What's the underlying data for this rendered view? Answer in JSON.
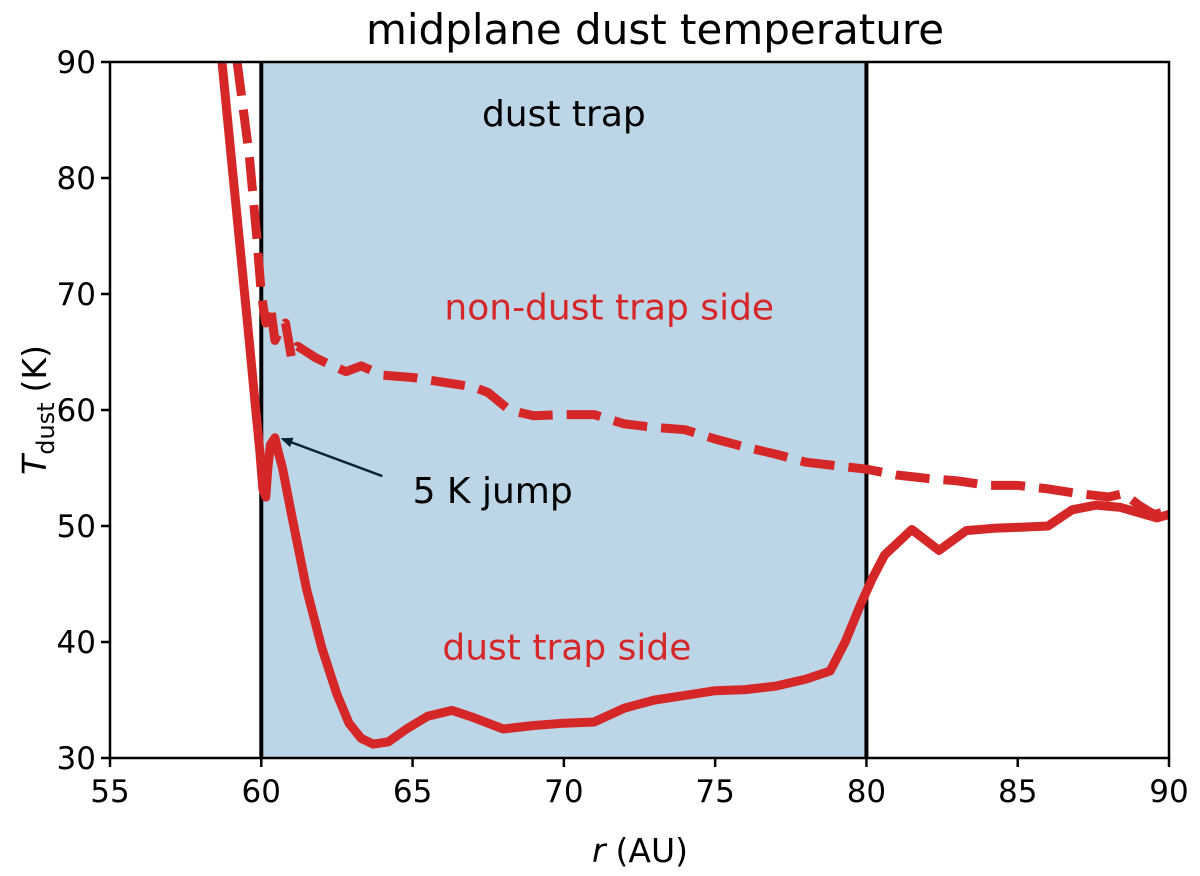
{
  "chart_data": {
    "type": "line",
    "title": "midplane dust temperature",
    "xlabel": "(AU)",
    "xlabel_symbol": "r",
    "ylabel_symbol": "T",
    "ylabel_subscript": "dust",
    "ylabel_unit": "(K)",
    "xlim": [
      55,
      90
    ],
    "ylim": [
      30,
      90
    ],
    "xticks": [
      55,
      60,
      65,
      70,
      75,
      80,
      85,
      90
    ],
    "yticks": [
      30,
      40,
      50,
      60,
      70,
      80,
      90
    ],
    "grid": false,
    "shaded_region": {
      "x": [
        60,
        80
      ],
      "label": "dust trap",
      "color": "#bcd6e8"
    },
    "vlines": [
      60,
      80
    ],
    "series": [
      {
        "name": "non-dust trap side",
        "color": "#d62728",
        "style": "dashed",
        "x": [
          59.2,
          59.6,
          59.85,
          60.0,
          60.15,
          60.3,
          60.45,
          60.6,
          60.8,
          61.0,
          61.2,
          61.5,
          61.8,
          62.2,
          62.8,
          63.3,
          64.0,
          65.0,
          66.0,
          67.0,
          67.5,
          68.2,
          69.0,
          70.0,
          71.0,
          72.0,
          73.0,
          74.0,
          75.0,
          76.0,
          77.0,
          78.0,
          79.0,
          80.0,
          81.0,
          82.0,
          83.0,
          84.0,
          85.0,
          86.0,
          87.0,
          88.0,
          88.5,
          89.0,
          89.5,
          90.0
        ],
        "y": [
          90.0,
          82.0,
          75.0,
          70.0,
          67.5,
          69.0,
          66.0,
          66.8,
          67.5,
          64.5,
          65.5,
          65.0,
          64.5,
          64.0,
          63.3,
          63.8,
          63.0,
          62.8,
          62.4,
          62.0,
          61.5,
          60.0,
          59.5,
          59.6,
          59.6,
          58.8,
          58.5,
          58.3,
          57.5,
          56.8,
          56.2,
          55.5,
          55.2,
          54.9,
          54.4,
          54.1,
          53.9,
          53.5,
          53.5,
          53.2,
          52.8,
          52.5,
          52.8,
          51.8,
          51.0,
          51.3
        ]
      },
      {
        "name": "dust trap side",
        "color": "#d62728",
        "style": "solid",
        "x": [
          58.7,
          59.0,
          59.3,
          59.6,
          59.8,
          59.95,
          60.05,
          60.15,
          60.22,
          60.3,
          60.45,
          60.55,
          60.7,
          61.0,
          61.5,
          62.0,
          62.5,
          62.9,
          63.3,
          63.7,
          64.2,
          64.8,
          65.5,
          66.3,
          67.0,
          68.0,
          69.0,
          70.0,
          71.0,
          72.0,
          73.0,
          74.0,
          75.0,
          76.0,
          77.0,
          78.0,
          78.8,
          79.3,
          79.8,
          80.2,
          80.6,
          81.5,
          82.4,
          83.3,
          84.2,
          85.1,
          86.0,
          86.8,
          87.6,
          88.4,
          89.2,
          89.6,
          90.0
        ],
        "y": [
          90.0,
          82.0,
          74.0,
          66.0,
          60.5,
          56.5,
          53.2,
          52.5,
          55.0,
          57.0,
          57.6,
          56.5,
          55.0,
          51.0,
          44.5,
          39.5,
          35.5,
          33.0,
          31.7,
          31.2,
          31.4,
          32.5,
          33.6,
          34.1,
          33.5,
          32.5,
          32.8,
          33.0,
          33.1,
          34.3,
          35.0,
          35.4,
          35.8,
          35.9,
          36.2,
          36.8,
          37.5,
          40.0,
          43.2,
          45.5,
          47.5,
          49.7,
          47.9,
          49.6,
          49.8,
          49.9,
          50.0,
          51.4,
          51.8,
          51.6,
          51.0,
          50.7,
          51.0
        ]
      }
    ],
    "annotations": [
      {
        "text": "dust trap",
        "x": 70.0,
        "y": 84.5,
        "color": "#000000",
        "anchor": "middle"
      },
      {
        "text": "non-dust trap side",
        "x": 71.5,
        "y": 67.8,
        "color": "#d62728",
        "anchor": "middle"
      },
      {
        "text": "dust trap side",
        "x": 70.1,
        "y": 38.5,
        "color": "#d62728",
        "anchor": "middle"
      },
      {
        "text": "5 K jump",
        "x": 65.0,
        "y": 52.0,
        "color": "#000000",
        "anchor": "start",
        "arrow_to": [
          60.7,
          57.5
        ],
        "arrow_from": [
          64.0,
          54.3
        ]
      }
    ]
  }
}
